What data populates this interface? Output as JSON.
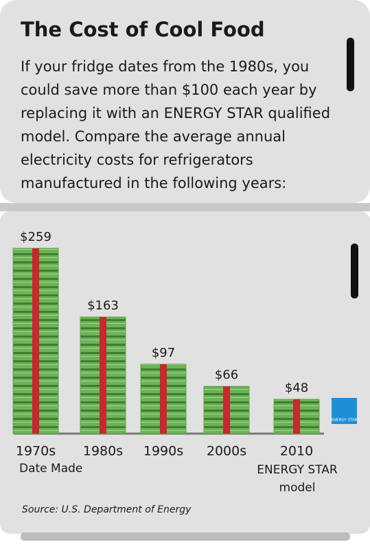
{
  "chart_data": {
    "type": "bar",
    "title": "The Cost of Cool Food",
    "subtitle": "If your fridge dates from the 1980s, you could save more than $100 each year by replacing it with an ENERGY STAR qualified model. Compare the average annual electricity costs for refrigerators manufactured in the following years:",
    "categories": [
      "1970s",
      "1980s",
      "1990s",
      "2000s",
      "2010"
    ],
    "category_note": "ENERGY STAR model",
    "x_label": "Date Made",
    "values": [
      259,
      163,
      97,
      66,
      48
    ],
    "value_labels": [
      "$259",
      "$163",
      "$97",
      "$66",
      "$48"
    ],
    "color": "#5fa84a",
    "strap_color": "#c8272e",
    "logo_text": "ENERGY STAR",
    "source": "Source: U.S. Department of Energy"
  }
}
